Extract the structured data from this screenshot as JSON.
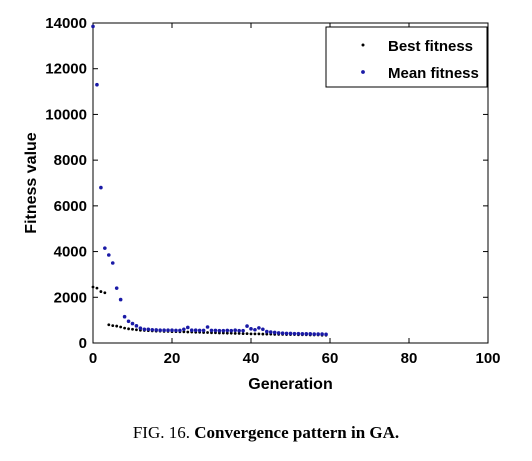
{
  "caption": {
    "label": "FIG. 16.",
    "title": "Convergence pattern in GA."
  },
  "chart_data": {
    "type": "scatter",
    "xlabel": "Generation",
    "ylabel": "Fitness value",
    "xlim": [
      0,
      100
    ],
    "ylim": [
      0,
      14000
    ],
    "xticks": [
      0,
      20,
      40,
      60,
      80,
      100
    ],
    "yticks": [
      0,
      2000,
      4000,
      6000,
      8000,
      10000,
      12000,
      14000
    ],
    "grid": false,
    "legend_position": "top-right",
    "series": [
      {
        "name": "Best fitness",
        "color": "#000000",
        "x": [
          0,
          1,
          2,
          3,
          4,
          5,
          6,
          7,
          8,
          9,
          10,
          11,
          12,
          13,
          14,
          15,
          16,
          17,
          18,
          19,
          20,
          21,
          22,
          23,
          24,
          25,
          26,
          27,
          28,
          29,
          30,
          31,
          32,
          33,
          34,
          35,
          36,
          37,
          38,
          39,
          40,
          41,
          42,
          43,
          44,
          45,
          46,
          47,
          48,
          49,
          50,
          51,
          52,
          53,
          54,
          55,
          56,
          57,
          58,
          59
        ],
        "y": [
          2450,
          2400,
          2250,
          2200,
          800,
          760,
          740,
          700,
          650,
          620,
          600,
          580,
          560,
          550,
          540,
          530,
          520,
          520,
          510,
          510,
          500,
          500,
          490,
          490,
          480,
          480,
          470,
          470,
          460,
          460,
          450,
          450,
          440,
          440,
          430,
          430,
          420,
          420,
          410,
          410,
          400,
          400,
          400,
          390,
          390,
          390,
          380,
          380,
          380,
          370,
          370,
          370,
          360,
          360,
          360,
          350,
          350,
          350,
          340,
          340
        ]
      },
      {
        "name": "Mean fitness",
        "color": "#1a1aa6",
        "x": [
          0,
          1,
          2,
          3,
          4,
          5,
          6,
          7,
          8,
          9,
          10,
          11,
          12,
          13,
          14,
          15,
          16,
          17,
          18,
          19,
          20,
          21,
          22,
          23,
          24,
          25,
          26,
          27,
          28,
          29,
          30,
          31,
          32,
          33,
          34,
          35,
          36,
          37,
          38,
          39,
          40,
          41,
          42,
          43,
          44,
          45,
          46,
          47,
          48,
          49,
          50,
          51,
          52,
          53,
          54,
          55,
          56,
          57,
          58,
          59
        ],
        "y": [
          13850,
          11300,
          6800,
          4150,
          3850,
          3500,
          2400,
          1900,
          1150,
          950,
          850,
          750,
          650,
          600,
          600,
          580,
          570,
          560,
          560,
          560,
          560,
          550,
          550,
          600,
          680,
          560,
          560,
          550,
          550,
          700,
          550,
          550,
          540,
          540,
          550,
          540,
          560,
          540,
          540,
          740,
          620,
          580,
          660,
          600,
          500,
          480,
          460,
          440,
          430,
          420,
          420,
          410,
          410,
          400,
          400,
          400,
          390,
          390,
          390,
          380
        ]
      }
    ]
  }
}
